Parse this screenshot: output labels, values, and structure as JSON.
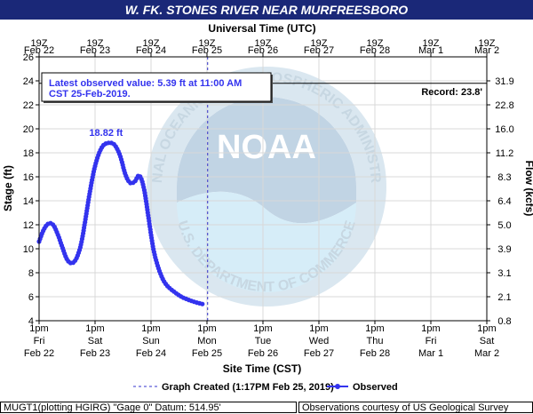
{
  "title": "W. FK. STONES RIVER NEAR MURFREESBORO",
  "top_axis_title": "Universal Time (UTC)",
  "bottom_axis_title": "Site Time (CST)",
  "left_axis_title": "Stage (ft)",
  "right_axis_title": "Flow (kcfs)",
  "info_box": {
    "line1": "Latest observed value: 5.39 ft at 11:00 AM",
    "line2": "CST 25-Feb-2019."
  },
  "record_label": "Record: 23.8'",
  "peak_label": "18.82 ft",
  "legend": {
    "created_label": "Graph Created (1:17PM Feb 25, 2019)",
    "observed_label": "Observed"
  },
  "footer": {
    "left": "MUGT1(plotting HGIRG) \"Gage 0\" Datum: 514.95'",
    "right": "Observations courtesy of US Geological Survey"
  },
  "watermark": {
    "logo_text": "NOAA",
    "ring_text": "NATIONAL OCEANIC AND ATMOSPHERIC ADMINISTRATION",
    "lower_text": "U.S. DEPARTMENT OF COMMERCE"
  },
  "colors": {
    "title_bar": "#1a2878",
    "series": "#3333ee",
    "record_line": "#000000",
    "created_line": "#3333cc",
    "grid": "#d8d8d8"
  },
  "chart_data": {
    "type": "line",
    "title": "W. FK. STONES RIVER NEAR MURFREESBORO",
    "xlabel": "Site Time (CST)",
    "ylabel": "Stage (ft)",
    "y2label": "Flow (kcfs)",
    "x_range": [
      "2019-02-22 13:00",
      "2019-03-02 13:00"
    ],
    "ylim": [
      4,
      26
    ],
    "y_ticks": [
      4,
      6,
      8,
      10,
      12,
      14,
      16,
      18,
      20,
      22,
      24,
      26
    ],
    "y2_ticks": [
      {
        "stage": 4,
        "flow": "0.8"
      },
      {
        "stage": 6,
        "flow": "2.1"
      },
      {
        "stage": 8,
        "flow": "3.1"
      },
      {
        "stage": 10,
        "flow": "3.9"
      },
      {
        "stage": 12,
        "flow": "5.0"
      },
      {
        "stage": 14,
        "flow": "6.4"
      },
      {
        "stage": 16,
        "flow": "8.3"
      },
      {
        "stage": 18,
        "flow": "11.2"
      },
      {
        "stage": 20,
        "flow": "16.0"
      },
      {
        "stage": 22,
        "flow": "22.8"
      },
      {
        "stage": 24,
        "flow": "31.9"
      }
    ],
    "bottom_ticks": [
      {
        "l1": "1pm",
        "l2": "Fri",
        "l3": "Feb 22"
      },
      {
        "l1": "1pm",
        "l2": "Sat",
        "l3": "Feb 23"
      },
      {
        "l1": "1pm",
        "l2": "Sun",
        "l3": "Feb 24"
      },
      {
        "l1": "1pm",
        "l2": "Mon",
        "l3": "Feb 25"
      },
      {
        "l1": "1pm",
        "l2": "Tue",
        "l3": "Feb 26"
      },
      {
        "l1": "1pm",
        "l2": "Wed",
        "l3": "Feb 27"
      },
      {
        "l1": "1pm",
        "l2": "Thu",
        "l3": "Feb 28"
      },
      {
        "l1": "1pm",
        "l2": "Fri",
        "l3": "Mar 1"
      },
      {
        "l1": "1pm",
        "l2": "Sat",
        "l3": "Mar 2"
      }
    ],
    "top_ticks": [
      {
        "l1": "19Z",
        "l2": "Feb 22"
      },
      {
        "l1": "19Z",
        "l2": "Feb 23"
      },
      {
        "l1": "19Z",
        "l2": "Feb 24"
      },
      {
        "l1": "19Z",
        "l2": "Feb 25"
      },
      {
        "l1": "19Z",
        "l2": "Feb 26"
      },
      {
        "l1": "19Z",
        "l2": "Feb 27"
      },
      {
        "l1": "19Z",
        "l2": "Feb 28"
      },
      {
        "l1": "19Z",
        "l2": "Mar 1"
      },
      {
        "l1": "19Z",
        "l2": "Mar 2"
      }
    ],
    "record_stage": 23.8,
    "graph_created": "2019-02-25 13:17",
    "peak": {
      "x": "2019-02-23 20:00",
      "y": 18.82
    },
    "series": [
      {
        "name": "Observed",
        "points": [
          {
            "x": "2019-02-22 13:00",
            "y": 10.6
          },
          {
            "x": "2019-02-22 15:00",
            "y": 11.6
          },
          {
            "x": "2019-02-22 17:00",
            "y": 12.1
          },
          {
            "x": "2019-02-22 19:00",
            "y": 12.0
          },
          {
            "x": "2019-02-22 21:00",
            "y": 11.2
          },
          {
            "x": "2019-02-22 23:00",
            "y": 10.1
          },
          {
            "x": "2019-02-23 01:00",
            "y": 9.1
          },
          {
            "x": "2019-02-23 03:00",
            "y": 8.8
          },
          {
            "x": "2019-02-23 05:00",
            "y": 9.2
          },
          {
            "x": "2019-02-23 07:00",
            "y": 10.4
          },
          {
            "x": "2019-02-23 09:00",
            "y": 12.6
          },
          {
            "x": "2019-02-23 11:00",
            "y": 15.0
          },
          {
            "x": "2019-02-23 13:00",
            "y": 16.9
          },
          {
            "x": "2019-02-23 15:00",
            "y": 18.1
          },
          {
            "x": "2019-02-23 17:00",
            "y": 18.7
          },
          {
            "x": "2019-02-23 20:00",
            "y": 18.82
          },
          {
            "x": "2019-02-23 22:00",
            "y": 18.5
          },
          {
            "x": "2019-02-24 00:00",
            "y": 17.6
          },
          {
            "x": "2019-02-24 02:00",
            "y": 16.2
          },
          {
            "x": "2019-02-24 04:00",
            "y": 15.5
          },
          {
            "x": "2019-02-24 06:00",
            "y": 15.6
          },
          {
            "x": "2019-02-24 08:00",
            "y": 16.1
          },
          {
            "x": "2019-02-24 10:00",
            "y": 15.0
          },
          {
            "x": "2019-02-24 12:00",
            "y": 12.5
          },
          {
            "x": "2019-02-24 14:00",
            "y": 10.0
          },
          {
            "x": "2019-02-24 16:00",
            "y": 8.5
          },
          {
            "x": "2019-02-24 18:00",
            "y": 7.5
          },
          {
            "x": "2019-02-24 20:00",
            "y": 6.9
          },
          {
            "x": "2019-02-24 23:00",
            "y": 6.4
          },
          {
            "x": "2019-02-25 02:00",
            "y": 6.0
          },
          {
            "x": "2019-02-25 05:00",
            "y": 5.75
          },
          {
            "x": "2019-02-25 08:00",
            "y": 5.55
          },
          {
            "x": "2019-02-25 11:00",
            "y": 5.39
          }
        ]
      }
    ]
  }
}
